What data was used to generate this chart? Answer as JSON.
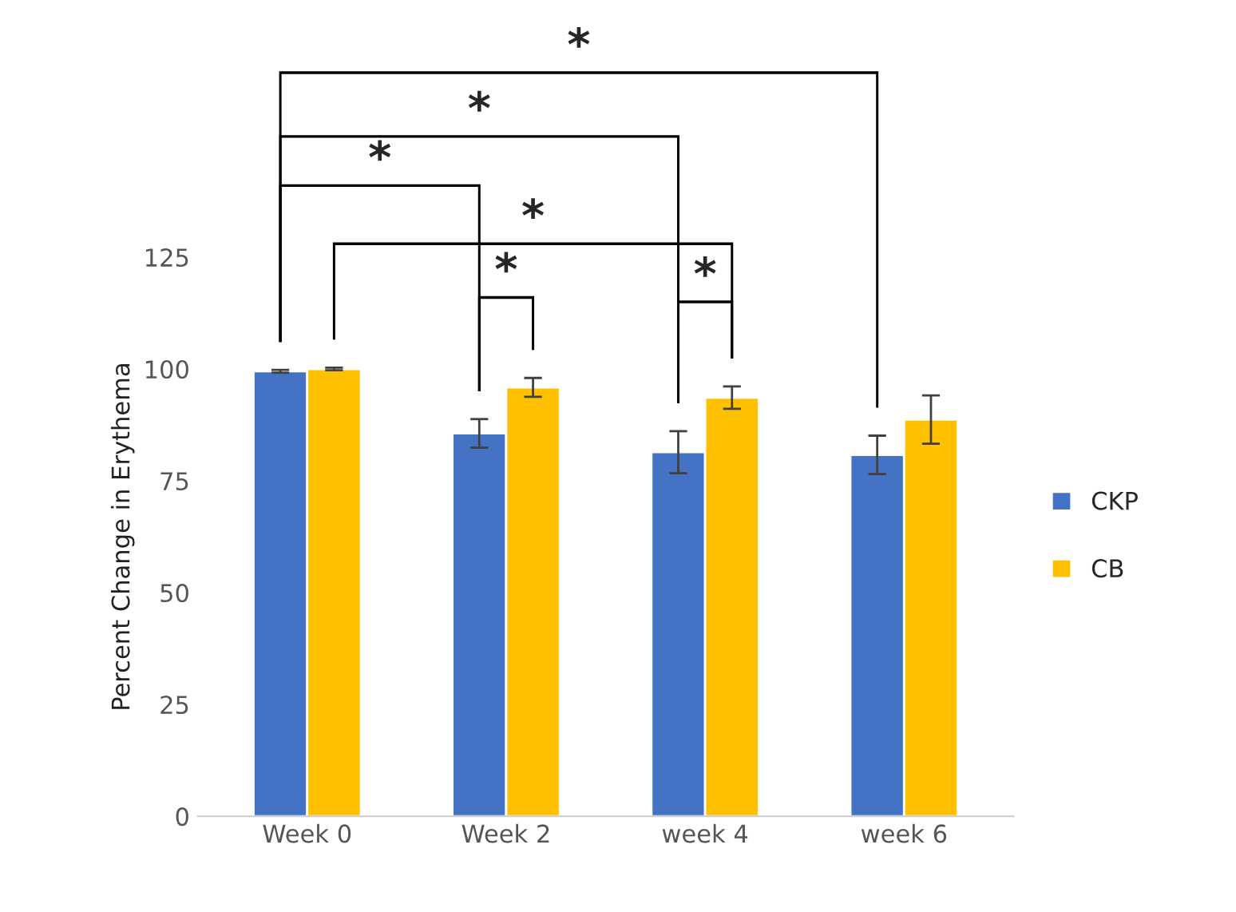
{
  "chart_data": {
    "type": "bar",
    "ylabel": "Percent Change in Erythema",
    "categories": [
      "Week 0",
      "Week 2",
      "week 4",
      "week 6"
    ],
    "series": [
      {
        "name": "CKP",
        "color": "#4472c4",
        "values": [
          99.5,
          85.6,
          81.4,
          80.8
        ],
        "errors": [
          0.3,
          3.2,
          4.7,
          4.3
        ]
      },
      {
        "name": "CB",
        "color": "#ffc000",
        "values": [
          100,
          95.9,
          93.6,
          88.7
        ],
        "errors": [
          0.3,
          2.1,
          2.5,
          5.4
        ]
      }
    ],
    "ylim": [
      0,
      125
    ],
    "yticks": [
      0,
      25,
      50,
      75,
      100,
      125
    ],
    "grid": false,
    "legend": "right",
    "annotations": [
      "*",
      "*",
      "*",
      "*",
      "*",
      "*"
    ]
  }
}
